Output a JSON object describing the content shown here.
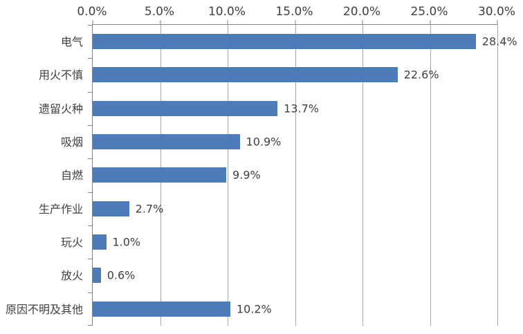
{
  "chart_data": {
    "type": "bar",
    "orientation": "horizontal",
    "title": "",
    "categories": [
      "电气",
      "用火不慎",
      "遗留火种",
      "吸烟",
      "自燃",
      "生产作业",
      "玩火",
      "放火",
      "原因不明及其他"
    ],
    "values": [
      28.4,
      22.6,
      13.7,
      10.9,
      9.9,
      2.7,
      1.0,
      0.6,
      10.2
    ],
    "value_labels": [
      "28.4%",
      "22.6%",
      "13.7%",
      "10.9%",
      "9.9%",
      "2.7%",
      "1.0%",
      "0.6%",
      "10.2%"
    ],
    "x_axis": {
      "position": "top",
      "min": 0,
      "max": 30,
      "ticks": [
        "0.0%",
        "5.0%",
        "10.0%",
        "15.0%",
        "20.0%",
        "25.0%",
        "30.0%"
      ]
    },
    "grid": true,
    "legend": "none",
    "colors": {
      "bar": "#4e7cba",
      "gridline": "#a6a6a6",
      "axis": "#7f7f7f",
      "text": "#3f3f3f",
      "background": "#ffffff"
    }
  }
}
